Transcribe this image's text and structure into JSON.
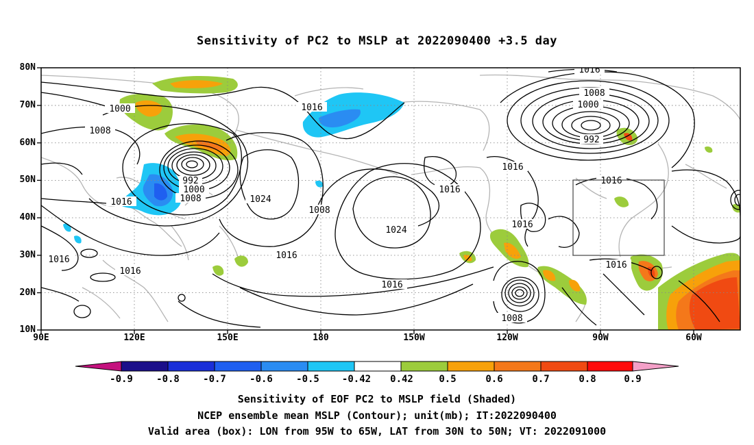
{
  "title": "Sensitivity of PC2 to MSLP at 2022090400 +3.5 day",
  "lat_labels": [
    "80N",
    "70N",
    "60N",
    "50N",
    "40N",
    "30N",
    "20N",
    "10N"
  ],
  "lon_labels": [
    "90E",
    "120E",
    "150E",
    "180",
    "150W",
    "120W",
    "90W",
    "60W"
  ],
  "contour_labels": [
    "1016",
    "1008",
    "1000",
    "992",
    "1000",
    "1008",
    "1016",
    "1024",
    "1016",
    "1008",
    "1024",
    "1016",
    "1016",
    "1016",
    "1016",
    "1016",
    "1016",
    "1008",
    "1000",
    "992",
    "1016",
    "1016",
    "1016",
    "1008"
  ],
  "colorbar": {
    "labels": [
      "-0.9",
      "-0.8",
      "-0.7",
      "-0.6",
      "-0.5",
      "-0.42",
      "0.42",
      "0.5",
      "0.6",
      "0.7",
      "0.8",
      "0.9"
    ],
    "colors": [
      "#1b0f8a",
      "#1a2fd8",
      "#1f5ff0",
      "#2a8cf2",
      "#1fc6f5",
      "#ffffff",
      "#9ccc3c",
      "#f7a10a",
      "#f4781a",
      "#f04a12",
      "#ff0a0a"
    ],
    "low_arrow_color": "#c4127e",
    "high_arrow_color": "#f4a0c8"
  },
  "footer": {
    "line1": "Sensitivity of EOF PC2 to MSLP field (Shaded)",
    "line2": "NCEP ensemble mean MSLP (Contour); unit(mb); IT:2022090400",
    "line3": "Valid area (box): LON from 95W to 65W, LAT from 30N to 50N; VT: 2022091000"
  }
}
